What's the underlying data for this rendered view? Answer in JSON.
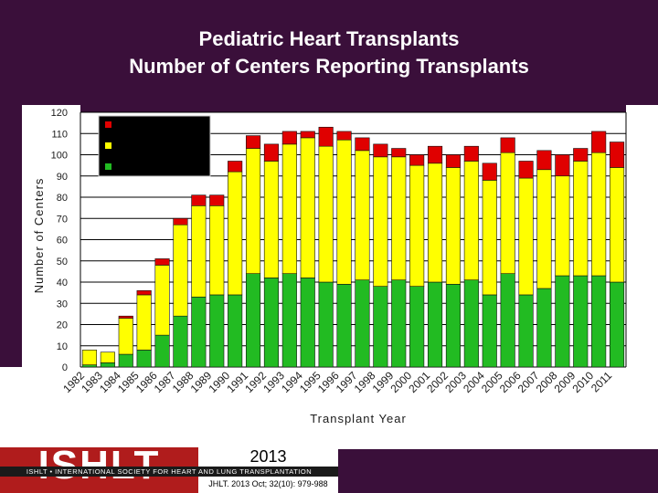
{
  "chart_data": {
    "type": "bar",
    "stacked": true,
    "title": "Pediatric Heart Transplants",
    "subtitle": "Number of Centers Reporting Transplants",
    "xlabel": "Transplant Year",
    "ylabel": "Number of Centers",
    "ylim": [
      0,
      120
    ],
    "yticks": [
      0,
      10,
      20,
      30,
      40,
      50,
      60,
      70,
      80,
      90,
      100,
      110,
      120
    ],
    "grid": true,
    "legend_position": "top-left",
    "categories": [
      "1982",
      "1983",
      "1984",
      "1985",
      "1986",
      "1987",
      "1988",
      "1989",
      "1990",
      "1991",
      "1992",
      "1993",
      "1994",
      "1995",
      "1996",
      "1997",
      "1998",
      "1999",
      "2000",
      "2001",
      "2002",
      "2003",
      "2004",
      "2005",
      "2006",
      "2007",
      "2008",
      "2009",
      "2010",
      "2011"
    ],
    "series": [
      {
        "name": "",
        "color": "#22bb22",
        "values": [
          1,
          2,
          6,
          8,
          15,
          24,
          33,
          34,
          34,
          44,
          42,
          44,
          42,
          40,
          39,
          41,
          38,
          41,
          38,
          40,
          39,
          41,
          34,
          44,
          34,
          37,
          43,
          43,
          43,
          40
        ]
      },
      {
        "name": "",
        "color": "#ffff00",
        "values": [
          7,
          5,
          17,
          26,
          33,
          43,
          43,
          42,
          58,
          59,
          55,
          61,
          66,
          64,
          68,
          61,
          61,
          58,
          57,
          56,
          55,
          56,
          54,
          57,
          55,
          56,
          47,
          54,
          58,
          54
        ]
      },
      {
        "name": "",
        "color": "#e00000",
        "values": [
          0,
          0,
          1,
          2,
          3,
          3,
          5,
          5,
          5,
          6,
          8,
          6,
          3,
          9,
          4,
          6,
          6,
          4,
          5,
          8,
          6,
          7,
          8,
          7,
          8,
          9,
          10,
          6,
          10,
          12
        ]
      }
    ]
  },
  "footer": {
    "logo_text": "ISHLT",
    "logo_subtitle": "ISHLT • INTERNATIONAL SOCIETY FOR HEART AND LUNG TRANSPLANTATION",
    "year": "2013",
    "citation": "JHLT. 2013 Oct; 32(10): 979-988"
  }
}
